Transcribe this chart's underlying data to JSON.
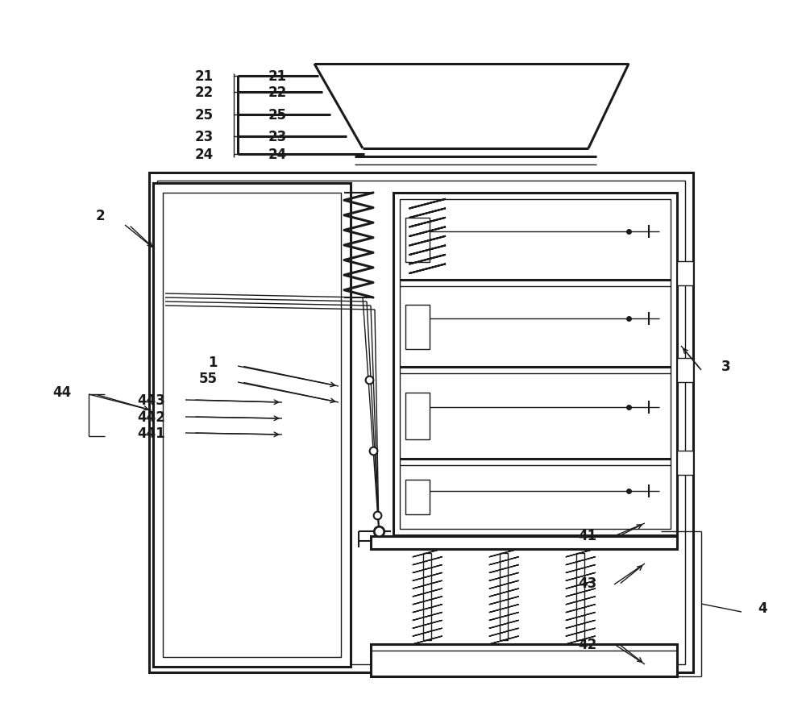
{
  "bg_color": "#ffffff",
  "lc": "#1a1a1a",
  "lw": 1.5,
  "lw2": 2.2,
  "lw3": 1.0,
  "fs": 12,
  "fig_w": 10.0,
  "fig_h": 8.78,
  "dpi": 100
}
